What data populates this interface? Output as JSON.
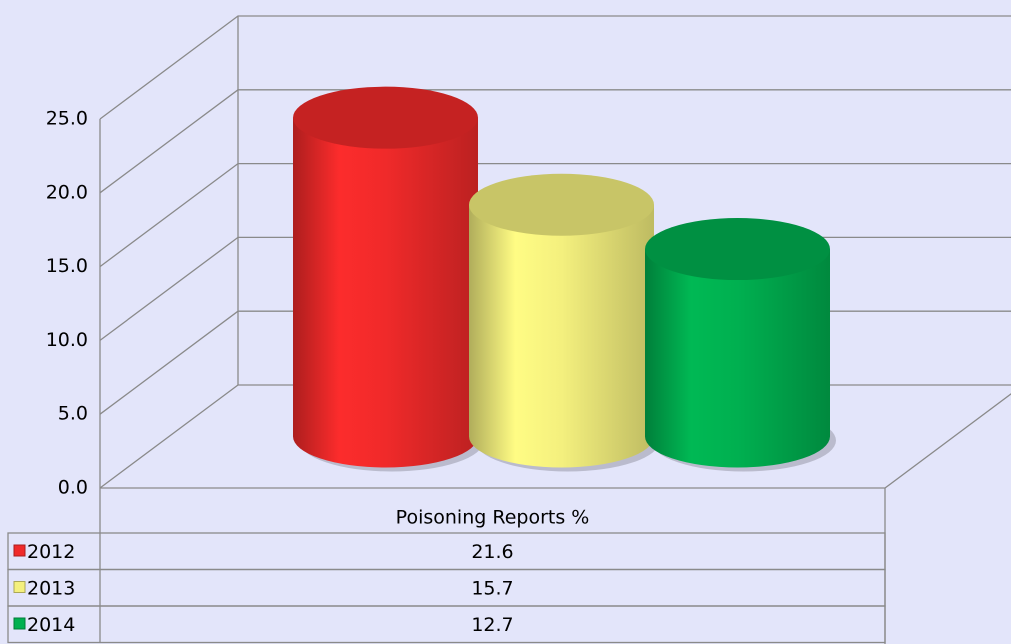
{
  "chart_data": {
    "type": "bar3d",
    "categories": [
      "Poisoning Reports %"
    ],
    "series": [
      {
        "name": "2012",
        "color": "#f02a2a",
        "values": [
          21.6
        ]
      },
      {
        "name": "2013",
        "color": "#f4f07e",
        "values": [
          15.7
        ]
      },
      {
        "name": "2014",
        "color": "#00b050",
        "values": [
          12.7
        ]
      }
    ],
    "ylim": [
      0,
      25
    ],
    "yticks": [
      {
        "value": 0,
        "label": "0.0"
      },
      {
        "value": 5,
        "label": "5.0"
      },
      {
        "value": 10,
        "label": "10.0"
      },
      {
        "value": 15,
        "label": "15.0"
      },
      {
        "value": 20,
        "label": "20.0"
      },
      {
        "value": 25,
        "label": "25.0"
      }
    ],
    "grid": true,
    "data_table": true
  }
}
